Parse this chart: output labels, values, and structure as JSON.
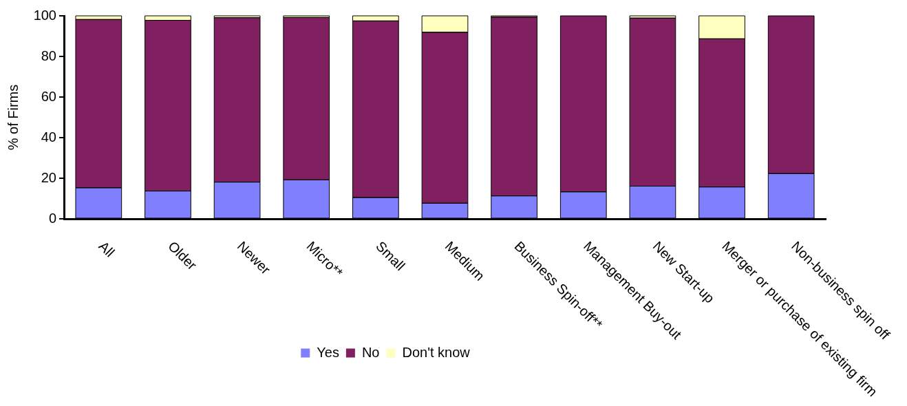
{
  "chart_data": {
    "type": "bar",
    "stacked": true,
    "ylabel": "% of Firms",
    "categories": [
      "All",
      "Older",
      "Newer",
      "Micro**",
      "Small",
      "Medium",
      "Business Spin-off**",
      "Management Buy-out",
      "New Start-up",
      "Merger or purchase of existing firm",
      "Non-business spin off"
    ],
    "series": [
      {
        "name": "Yes",
        "color": "#8080ff",
        "values": [
          15.3,
          13.7,
          18.1,
          19.2,
          10.5,
          7.7,
          11.3,
          13.3,
          16.1,
          15.7,
          22.3
        ]
      },
      {
        "name": "No",
        "color": "#802060",
        "values": [
          82.9,
          84.1,
          81.0,
          80.0,
          87.0,
          84.2,
          88.1,
          86.7,
          82.8,
          73.0,
          77.7
        ]
      },
      {
        "name": "Don't know",
        "color": "#ffffc0",
        "values": [
          1.8,
          2.2,
          0.9,
          0.8,
          2.5,
          8.1,
          0.6,
          0,
          1.1,
          11.3,
          0
        ]
      }
    ],
    "ylim": [
      0,
      100
    ],
    "yticks": [
      0,
      20,
      40,
      60,
      80,
      100
    ],
    "legend": "bottom"
  }
}
